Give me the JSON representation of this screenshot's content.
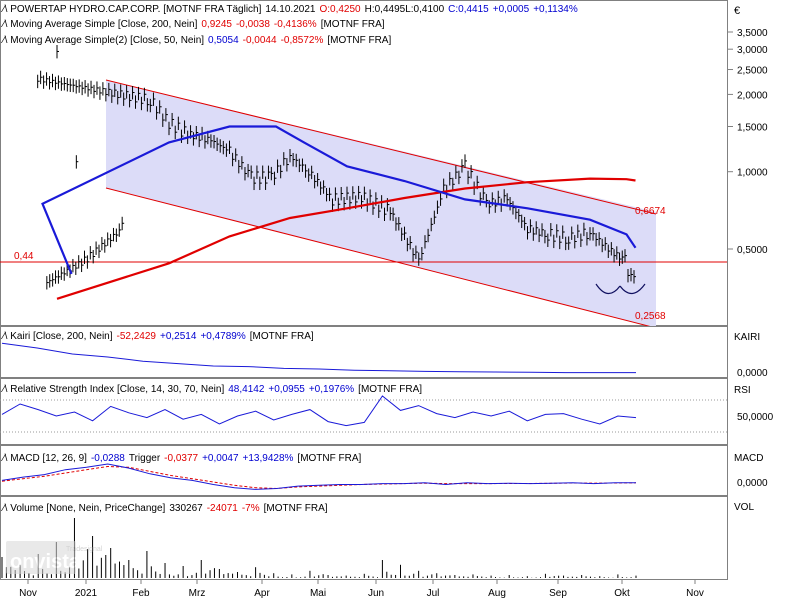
{
  "currency": "€",
  "colors": {
    "price": "#000000",
    "ma200": "#e00000",
    "ma50": "#1a1ad8",
    "channel_fill": "#dcdcf8",
    "channel_line": "#e00000",
    "neg": "#e00000",
    "pos": "#0000d0"
  },
  "headers": {
    "main": {
      "name": "POWERTAP HYDRO.CAP.CORP. [MOTNF FRA Täglich]",
      "date": "14.10.2021",
      "o": "O:0,4250",
      "h": "H:0,4495",
      "l": "L:0,4100",
      "c": "C:0,4415",
      "chg": "+0,0005",
      "pct": "+0,1134%"
    },
    "ma200": {
      "name": "Moving Average Simple [Close, 200, Nein]",
      "val": "0,9245",
      "chg": "-0,0038",
      "pct": "-0,4136%",
      "src": "[MOTNF FRA]"
    },
    "ma50": {
      "name": "Moving Average Simple(2) [Close, 50, Nein]",
      "val": "0,5054",
      "chg": "-0,0044",
      "pct": "-0,8572%",
      "src": "[MOTNF FRA]"
    },
    "kairi": {
      "name": "Kairi [Close, 200, Nein]",
      "val": "-52,2429",
      "chg": "+0,2514",
      "pct": "+0,4789%",
      "src": "[MOTNF FRA]"
    },
    "rsi": {
      "name": "Relative Strength Index [Close, 14, 30, 70, Nein]",
      "val": "48,4142",
      "chg": "+0,0955",
      "pct": "+0,1976%",
      "src": "[MOTNF FRA]"
    },
    "macd": {
      "name": "MACD [12, 26, 9]",
      "val": "-0,0288",
      "trig_label": "Trigger",
      "trig": "-0,0377",
      "chg": "+0,0047",
      "pct": "+13,9428%",
      "src": "[MOTNF FRA]"
    },
    "volume": {
      "name": "Volume [None, Nein, PriceChange]",
      "val": "330267",
      "chg": "-24071",
      "pct": "-7%",
      "src": "[MOTNF FRA]"
    }
  },
  "pane_labels": {
    "kairi": "KAIRI",
    "rsi": "RSI",
    "macd": "MACD",
    "volume": "VOL"
  },
  "watermark": {
    "brand": "onvista",
    "sub": "Tradesignal"
  },
  "chart_data": {
    "type": "line",
    "title": "POWERTAP HYDRO.CAP.CORP. [MOTNF FRA Täglich]",
    "x_labels": [
      "Nov",
      "2021",
      "Feb",
      "Mrz",
      "Apr",
      "Mai",
      "Jun",
      "Jul",
      "Aug",
      "Sep",
      "Okt",
      "Nov"
    ],
    "price_axis": {
      "scale": "log",
      "ticks": [
        {
          "value": 3.5,
          "label": "3,5000"
        },
        {
          "value": 3.0,
          "label": "3,0000"
        },
        {
          "value": 2.5,
          "label": "2,5000"
        },
        {
          "value": 2.0,
          "label": "2,0000"
        },
        {
          "value": 1.5,
          "label": "1,5000"
        },
        {
          "value": 1.0,
          "label": "1,0000"
        },
        {
          "value": 0.5,
          "label": "0,5000"
        }
      ]
    },
    "annotations": [
      {
        "text": "0,44",
        "value": 0.44,
        "kind": "horizontal-line"
      },
      {
        "text": "0,6674",
        "value": 0.6674,
        "kind": "channel-upper-end"
      },
      {
        "text": "0,2568",
        "value": 0.2568,
        "kind": "channel-lower-end"
      }
    ],
    "series": [
      {
        "name": "Close",
        "points": [
          [
            "Nov",
            0.37
          ],
          [
            "Nov",
            0.45
          ],
          [
            "Nov",
            0.6
          ],
          [
            "2021",
            1.05
          ],
          [
            "2021",
            2.9
          ],
          [
            "2021",
            2.3
          ],
          [
            "Feb",
            1.9
          ],
          [
            "Feb",
            1.55
          ],
          [
            "Feb",
            1.4
          ],
          [
            "Mrz",
            1.35
          ],
          [
            "Mrz",
            1.2
          ],
          [
            "Mrz",
            0.95
          ],
          [
            "Apr",
            0.95
          ],
          [
            "Apr",
            1.15
          ],
          [
            "Apr",
            1.0
          ],
          [
            "Mai",
            0.78
          ],
          [
            "Mai",
            0.8
          ],
          [
            "Jun",
            0.7
          ],
          [
            "Jun",
            0.45
          ],
          [
            "Jul",
            0.85
          ],
          [
            "Jul",
            1.05
          ],
          [
            "Jul",
            0.75
          ],
          [
            "Aug",
            0.78
          ],
          [
            "Aug",
            0.6
          ],
          [
            "Aug",
            0.57
          ],
          [
            "Sep",
            0.55
          ],
          [
            "Sep",
            0.58
          ],
          [
            "Sep",
            0.49
          ],
          [
            "Okt",
            0.45
          ],
          [
            "Okt",
            0.38
          ],
          [
            "Okt",
            0.4415
          ]
        ]
      },
      {
        "name": "Moving Average Simple [Close, 200, Nein]",
        "points": [
          [
            "2021",
            0.32
          ],
          [
            "Feb",
            0.44
          ],
          [
            "Mrz",
            0.56
          ],
          [
            "Apr",
            0.66
          ],
          [
            "Mai",
            0.72
          ],
          [
            "Jun",
            0.79
          ],
          [
            "Jul",
            0.86
          ],
          [
            "Aug",
            0.91
          ],
          [
            "Sep",
            0.94
          ],
          [
            "Okt",
            0.935
          ],
          [
            "Okt",
            0.9245
          ]
        ]
      },
      {
        "name": "Moving Average Simple(2) [Close, 50, Nein]",
        "points": [
          [
            "2021",
            0.4
          ],
          [
            "2021",
            0.75
          ],
          [
            "Feb",
            1.3
          ],
          [
            "Mrz",
            1.5
          ],
          [
            "Apr",
            1.5
          ],
          [
            "Apr",
            1.3
          ],
          [
            "Mai",
            1.05
          ],
          [
            "Jun",
            0.92
          ],
          [
            "Jul",
            0.78
          ],
          [
            "Aug",
            0.72
          ],
          [
            "Sep",
            0.65
          ],
          [
            "Okt",
            0.57
          ],
          [
            "Okt",
            0.5054
          ]
        ]
      }
    ],
    "indicators": {
      "kairi_ticks": [
        {
          "value": 0,
          "label": "0,0000"
        }
      ],
      "rsi_ticks": [
        {
          "value": 50,
          "label": "50,0000"
        }
      ],
      "macd_ticks": [
        {
          "value": 0,
          "label": "0,0000"
        }
      ],
      "kairi": [
        48,
        40,
        30,
        25,
        18,
        14,
        10,
        9,
        6,
        5,
        3,
        2,
        1,
        0.5,
        0,
        -0.5,
        -1,
        -1,
        -1
      ],
      "rsi": [
        52,
        65,
        58,
        50,
        55,
        44,
        62,
        54,
        48,
        58,
        46,
        52,
        40,
        50,
        56,
        45,
        52,
        58,
        43,
        38,
        42,
        75,
        57,
        63,
        53,
        48,
        55,
        50,
        56,
        44,
        52,
        53,
        46,
        40,
        50,
        48
      ],
      "macd": [
        0.02,
        0.06,
        0.09,
        0.15,
        0.18,
        0.22,
        0.17,
        0.1,
        0.05,
        0.02,
        -0.03,
        -0.07,
        -0.09,
        -0.08,
        -0.05,
        -0.04,
        -0.03,
        -0.03,
        -0.02,
        -0.02,
        -0.01,
        -0.03,
        -0.01,
        -0.02,
        -0.015,
        -0.02,
        -0.015,
        -0.01,
        -0.02,
        -0.01,
        -0.01
      ],
      "trigger": [
        0.01,
        0.04,
        0.07,
        0.11,
        0.15,
        0.19,
        0.18,
        0.13,
        0.08,
        0.04,
        0.0,
        -0.04,
        -0.07,
        -0.08,
        -0.06,
        -0.05,
        -0.04,
        -0.03,
        -0.025,
        -0.02,
        -0.015,
        -0.02,
        -0.02,
        -0.02,
        -0.018,
        -0.018,
        -0.016,
        -0.012,
        -0.015,
        -0.012,
        -0.01
      ],
      "volume": [
        0.35,
        0.22,
        0.4,
        0.6,
        1.0,
        0.7,
        0.5,
        0.3,
        0.45,
        0.25,
        0.2,
        0.3,
        0.15,
        0.1,
        0.18,
        0.08,
        0.06,
        0.12,
        0.05,
        0.04,
        0.07,
        0.3,
        0.22,
        0.12,
        0.08,
        0.05,
        0.06,
        0.04,
        0.05,
        0.03,
        0.07,
        0.04,
        0.05,
        0.03,
        0.06,
        0.04
      ]
    }
  }
}
